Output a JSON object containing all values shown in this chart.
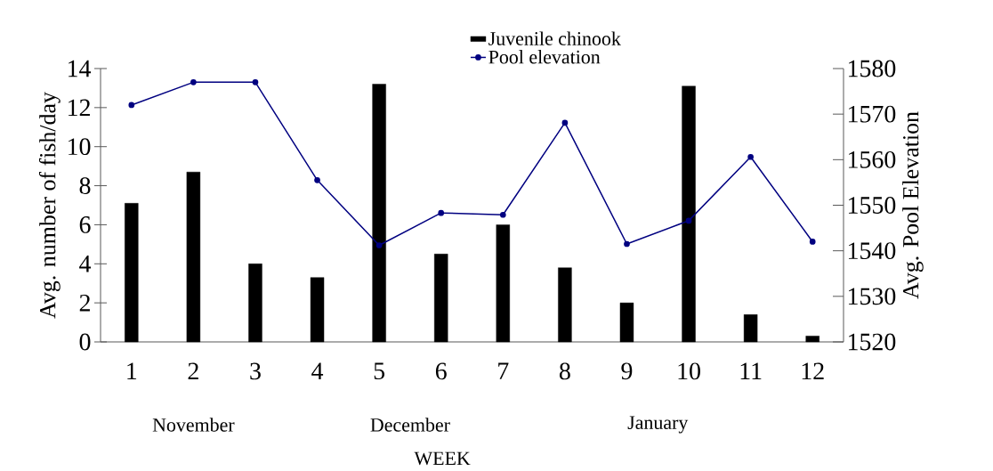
{
  "chart_data": {
    "type": "bar",
    "xlabel": "WEEK",
    "ylabel": "Avg. number of fish/day",
    "y2label": "Avg. Pool Elevation",
    "categories": [
      "1",
      "2",
      "3",
      "4",
      "5",
      "6",
      "7",
      "8",
      "9",
      "10",
      "11",
      "12"
    ],
    "series": [
      {
        "name": "Juvenile chinook",
        "color": "#000000",
        "values": [
          7.1,
          8.7,
          4.0,
          3.3,
          13.2,
          4.5,
          6.0,
          3.8,
          2.0,
          13.1,
          1.4,
          0.3
        ]
      },
      {
        "name": "Pool elevation",
        "type": "line",
        "axis": "y2",
        "color": "#000080",
        "values": [
          1572,
          1577,
          1577,
          1555.5,
          1541.2,
          1548.3,
          1547.9,
          1568.1,
          1541.5,
          1546.6,
          1560.6,
          1542
        ]
      }
    ],
    "ylim": [
      0,
      14
    ],
    "yticks": [
      0,
      2,
      4,
      6,
      8,
      10,
      12,
      14
    ],
    "y2lim": [
      1520,
      1580
    ],
    "y2ticks": [
      1520,
      1530,
      1540,
      1550,
      1560,
      1570,
      1580
    ],
    "marker": "circle",
    "legend": "top",
    "annotations": [
      "November",
      "December",
      "January"
    ]
  }
}
